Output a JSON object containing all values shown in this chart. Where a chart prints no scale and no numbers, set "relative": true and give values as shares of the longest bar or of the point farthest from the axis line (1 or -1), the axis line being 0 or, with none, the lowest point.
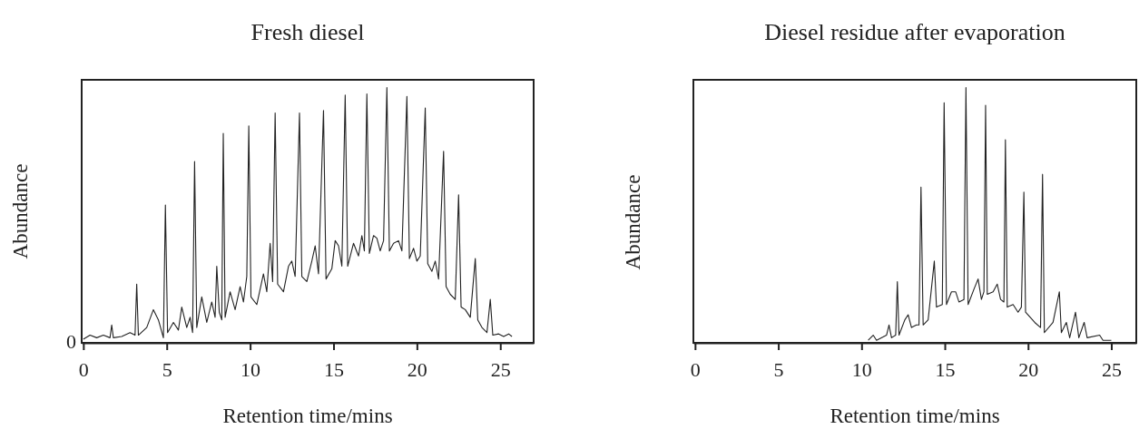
{
  "chart_data": [
    {
      "type": "line",
      "title": "Fresh diesel",
      "xlabel": "Retention time/mins",
      "ylabel": "Abundance",
      "relative": true,
      "xlim": [
        -0.1,
        27
      ],
      "xticks": [
        0,
        5,
        10,
        15,
        20,
        25
      ],
      "annotations": [
        "0"
      ],
      "grid": false,
      "marker": "none",
      "line_style": "solid",
      "series": [
        {
          "color": "#222222",
          "x": [
            0,
            0.4,
            0.8,
            1.2,
            1.6,
            1.7,
            1.8,
            2.3,
            2.8,
            3.1,
            3.2,
            3.3,
            3.8,
            4.2,
            4.5,
            4.8,
            4.92,
            5.05,
            5.4,
            5.7,
            5.9,
            6.2,
            6.4,
            6.55,
            6.67,
            6.8,
            7.1,
            7.4,
            7.7,
            7.9,
            8.0,
            8.15,
            8.3,
            8.39,
            8.5,
            8.8,
            9.1,
            9.4,
            9.6,
            9.8,
            9.92,
            10.05,
            10.4,
            10.8,
            11.0,
            11.2,
            11.35,
            11.5,
            11.65,
            12.0,
            12.3,
            12.5,
            12.7,
            12.96,
            13.1,
            13.4,
            13.7,
            13.9,
            14.1,
            14.4,
            14.55,
            14.9,
            15.1,
            15.3,
            15.5,
            15.7,
            15.85,
            16.2,
            16.5,
            16.7,
            16.85,
            17.0,
            17.15,
            17.4,
            17.6,
            17.8,
            18.0,
            18.2,
            18.35,
            18.6,
            18.9,
            19.1,
            19.4,
            19.55,
            19.8,
            20.0,
            20.2,
            20.5,
            20.65,
            20.9,
            21.1,
            21.3,
            21.6,
            21.75,
            22.0,
            22.3,
            22.5,
            22.65,
            22.9,
            23.2,
            23.5,
            23.65,
            23.9,
            24.2,
            24.4,
            24.55,
            24.9,
            25.2,
            25.5,
            25.7
          ],
          "values": [
            0.014,
            0.03,
            0.02,
            0.03,
            0.02,
            0.07,
            0.02,
            0.025,
            0.04,
            0.03,
            0.23,
            0.03,
            0.06,
            0.13,
            0.09,
            0.02,
            0.54,
            0.04,
            0.08,
            0.05,
            0.14,
            0.06,
            0.1,
            0.04,
            0.71,
            0.06,
            0.18,
            0.08,
            0.16,
            0.1,
            0.3,
            0.12,
            0.09,
            0.82,
            0.1,
            0.2,
            0.13,
            0.22,
            0.16,
            0.26,
            0.85,
            0.18,
            0.15,
            0.27,
            0.2,
            0.39,
            0.24,
            0.9,
            0.23,
            0.2,
            0.3,
            0.32,
            0.26,
            0.9,
            0.26,
            0.24,
            0.32,
            0.38,
            0.27,
            0.91,
            0.25,
            0.29,
            0.4,
            0.38,
            0.3,
            0.97,
            0.3,
            0.39,
            0.34,
            0.42,
            0.36,
            0.975,
            0.35,
            0.42,
            0.41,
            0.36,
            0.4,
            1.0,
            0.36,
            0.39,
            0.4,
            0.36,
            0.965,
            0.33,
            0.37,
            0.32,
            0.34,
            0.92,
            0.31,
            0.28,
            0.32,
            0.25,
            0.75,
            0.22,
            0.19,
            0.17,
            0.58,
            0.14,
            0.13,
            0.1,
            0.33,
            0.09,
            0.06,
            0.04,
            0.17,
            0.03,
            0.035,
            0.025,
            0.035,
            0.025
          ]
        }
      ]
    },
    {
      "type": "line",
      "title": "Diesel residue after evaporation",
      "xlabel": "Retention time/mins",
      "ylabel": "Abundance",
      "relative": true,
      "xlim": [
        -0.1,
        26.5
      ],
      "xticks": [
        0,
        5,
        10,
        15,
        20,
        25
      ],
      "grid": false,
      "marker": "none",
      "line_style": "solid",
      "series": [
        {
          "color": "#222222",
          "x": [
            10.4,
            10.7,
            10.9,
            11.5,
            11.65,
            11.8,
            12.05,
            12.15,
            12.25,
            12.6,
            12.8,
            13.0,
            13.3,
            13.45,
            13.57,
            13.7,
            14.0,
            14.37,
            14.5,
            14.85,
            14.96,
            15.1,
            15.4,
            15.65,
            15.85,
            16.15,
            16.27,
            16.4,
            16.75,
            17.0,
            17.2,
            17.35,
            17.45,
            17.55,
            17.9,
            18.15,
            18.35,
            18.55,
            18.64,
            18.75,
            19.1,
            19.4,
            19.6,
            19.75,
            19.85,
            20.4,
            20.75,
            20.87,
            20.98,
            21.5,
            21.88,
            22.0,
            22.3,
            22.5,
            22.85,
            23.05,
            23.37,
            23.55,
            24.3,
            24.5,
            25.0
          ],
          "values": [
            0.01,
            0.03,
            0.01,
            0.03,
            0.07,
            0.02,
            0.03,
            0.24,
            0.03,
            0.09,
            0.11,
            0.06,
            0.07,
            0.07,
            0.61,
            0.07,
            0.09,
            0.32,
            0.14,
            0.15,
            0.94,
            0.15,
            0.2,
            0.2,
            0.16,
            0.17,
            1.0,
            0.15,
            0.21,
            0.25,
            0.17,
            0.2,
            0.93,
            0.19,
            0.2,
            0.23,
            0.17,
            0.16,
            0.795,
            0.14,
            0.15,
            0.12,
            0.14,
            0.59,
            0.12,
            0.08,
            0.06,
            0.66,
            0.04,
            0.08,
            0.2,
            0.04,
            0.08,
            0.02,
            0.12,
            0.02,
            0.08,
            0.02,
            0.03,
            0.01,
            0.01
          ]
        }
      ]
    }
  ]
}
